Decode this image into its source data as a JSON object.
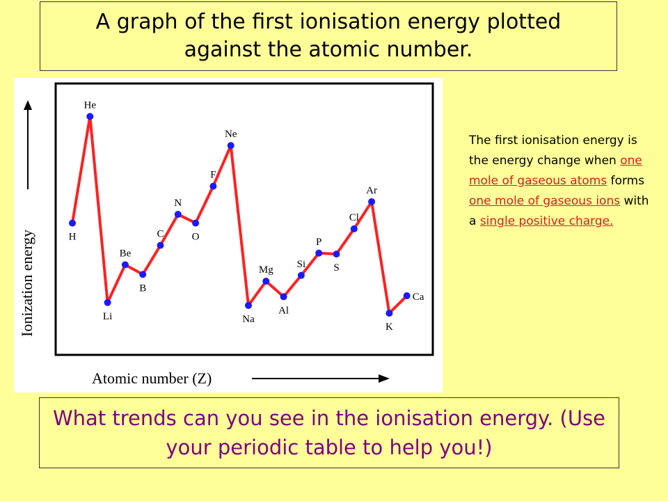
{
  "slide": {
    "title": "A graph of the first ionisation energy plotted against the atomic number.",
    "question": "What trends can you see in the ionisation energy. (Use your periodic table to help you!)"
  },
  "definition": {
    "p1": "The first ionisation energy is the energy change when ",
    "h1": "one mole of gaseous atoms",
    "p2": " forms ",
    "h2": "one mole of gaseous ions",
    "p3": " with a ",
    "h3": "single positive charge."
  },
  "colors": {
    "background": "#ffff99",
    "line": "#ff2020",
    "point": "#1a1aff",
    "question_text": "#800080",
    "highlight": "#d42020"
  },
  "chart_data": {
    "type": "line",
    "xlabel": "Atomic number (Z)",
    "ylabel": "Ionization energy",
    "grid": false,
    "axis_tick_labels": false,
    "x": [
      1,
      2,
      3,
      4,
      5,
      6,
      7,
      8,
      9,
      10,
      11,
      12,
      13,
      14,
      15,
      16,
      17,
      18,
      19,
      20
    ],
    "point_labels": [
      "H",
      "He",
      "Li",
      "Be",
      "B",
      "C",
      "N",
      "O",
      "F",
      "Ne",
      "Na",
      "Mg",
      "Al",
      "Si",
      "P",
      "S",
      "Cl",
      "Ar",
      "K",
      "Ca"
    ],
    "values": [
      13.6,
      24.6,
      5.4,
      9.3,
      8.3,
      11.3,
      14.5,
      13.6,
      17.4,
      21.6,
      5.1,
      7.6,
      6.0,
      8.2,
      10.5,
      10.4,
      13.0,
      15.8,
      4.3,
      6.1
    ],
    "y_unit_range": [
      0,
      28
    ]
  }
}
